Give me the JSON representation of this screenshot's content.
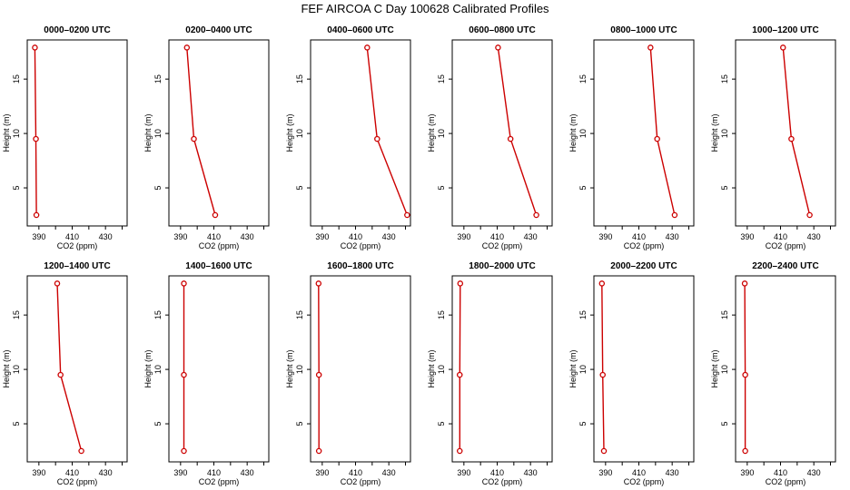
{
  "figure_title": "FEF AIRCOA C  Day 100628  Calibrated Profiles",
  "colors": {
    "line": "#cc0000",
    "axis": "#000000",
    "background": "#ffffff"
  },
  "chart_data": {
    "type": "line",
    "title": "FEF AIRCOA C  Day 100628  Calibrated Profiles",
    "xlabel": "CO2 (ppm)",
    "ylabel": "Height (m)",
    "xlim": [
      383,
      443
    ],
    "ylim": [
      1.5,
      18.6
    ],
    "xticks": [
      390,
      410,
      430
    ],
    "yticks": [
      5,
      10,
      15
    ],
    "panels": [
      {
        "title": "0000–0200 UTC",
        "heights": [
          2.5,
          9.5,
          17.9
        ],
        "co2": [
          388.5,
          388.2,
          387.6
        ]
      },
      {
        "title": "0200–0400 UTC",
        "heights": [
          2.5,
          9.5,
          17.9
        ],
        "co2": [
          410.8,
          398.0,
          393.8
        ]
      },
      {
        "title": "0400–0600 UTC",
        "heights": [
          2.5,
          9.5,
          17.9
        ],
        "co2": [
          441.0,
          423.0,
          417.0
        ]
      },
      {
        "title": "0600–0800 UTC",
        "heights": [
          2.5,
          9.5,
          17.9
        ],
        "co2": [
          433.5,
          418.0,
          410.5
        ]
      },
      {
        "title": "0800–1000 UTC",
        "heights": [
          2.5,
          9.5,
          17.9
        ],
        "co2": [
          431.5,
          421.0,
          417.0
        ]
      },
      {
        "title": "1000–1200 UTC",
        "heights": [
          2.5,
          9.5,
          17.9
        ],
        "co2": [
          427.5,
          416.5,
          411.5
        ]
      },
      {
        "title": "1200–1400 UTC",
        "heights": [
          2.5,
          9.5,
          17.9
        ],
        "co2": [
          415.5,
          403.0,
          401.0
        ]
      },
      {
        "title": "1400–1600 UTC",
        "heights": [
          2.5,
          9.5,
          17.9
        ],
        "co2": [
          392.0,
          392.0,
          392.0
        ]
      },
      {
        "title": "1600–1800 UTC",
        "heights": [
          2.5,
          9.5,
          17.9
        ],
        "co2": [
          388.0,
          388.0,
          387.8
        ]
      },
      {
        "title": "1800–2000 UTC",
        "heights": [
          2.5,
          9.5,
          17.9
        ],
        "co2": [
          387.5,
          387.5,
          387.8
        ]
      },
      {
        "title": "2000–2200 UTC",
        "heights": [
          2.5,
          9.5,
          17.9
        ],
        "co2": [
          389.0,
          388.3,
          387.8
        ]
      },
      {
        "title": "2200–2400 UTC",
        "heights": [
          2.5,
          9.5,
          17.9
        ],
        "co2": [
          388.8,
          388.8,
          388.5
        ]
      }
    ]
  }
}
